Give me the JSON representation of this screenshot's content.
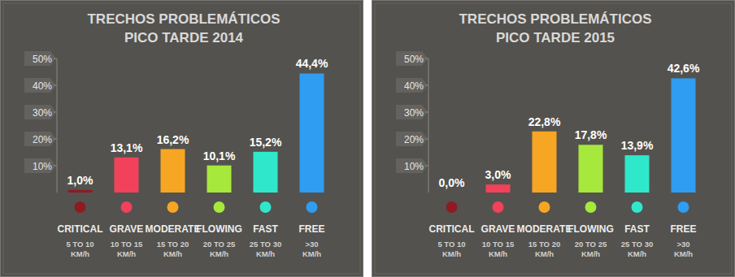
{
  "chart_data": [
    {
      "type": "bar",
      "title": "TRECHOS PROBLEMÁTICOS",
      "subtitle": "PICO TARDE 2014",
      "categories": [
        "CRITICAL",
        "GRAVE",
        "MODERATE",
        "FLOWING",
        "FAST",
        "FREE"
      ],
      "category_notes": [
        "5 TO 10 KM/h",
        "10 TO 15 KM/h",
        "15 TO 20 KM/h",
        "20 TO 25 KM/h",
        "25 TO 30 KM/h",
        ">30 KM/h"
      ],
      "values": [
        1.0,
        13.1,
        16.2,
        10.1,
        15.2,
        44.4
      ],
      "value_labels": [
        "1,0%",
        "13,1%",
        "16,2%",
        "10,1%",
        "15,2%",
        "44,4%"
      ],
      "colors": [
        "#8e1b22",
        "#f2415b",
        "#f6a623",
        "#a6e83c",
        "#2fe8cb",
        "#2f9df2"
      ],
      "ylim": [
        0,
        50
      ],
      "yticks": [
        {
          "value": 10,
          "label": "10%"
        },
        {
          "value": 20,
          "label": "20%"
        },
        {
          "value": 30,
          "label": "30%"
        },
        {
          "value": 40,
          "label": "40%"
        },
        {
          "value": 50,
          "label": "50%"
        }
      ],
      "data_labels": true,
      "grid": false
    },
    {
      "type": "bar",
      "title": "TRECHOS PROBLEMÁTICOS",
      "subtitle": "PICO TARDE 2015",
      "categories": [
        "CRITICAL",
        "GRAVE",
        "MODERATE",
        "FLOWING",
        "FAST",
        "FREE"
      ],
      "category_notes": [
        "5 TO 10 KM/h",
        "10 TO 15 KM/h",
        "15 TO 20 KM/h",
        "20 TO 25 KM/h",
        "25 TO 30 KM/h",
        ">30 KM/h"
      ],
      "values": [
        0.0,
        3.0,
        22.8,
        17.8,
        13.9,
        42.6
      ],
      "value_labels": [
        "0,0%",
        "3,0%",
        "22,8%",
        "17,8%",
        "13,9%",
        "42,6%"
      ],
      "colors": [
        "#8e1b22",
        "#f2415b",
        "#f6a623",
        "#a6e83c",
        "#2fe8cb",
        "#2f9df2"
      ],
      "ylim": [
        0,
        50
      ],
      "yticks": [
        {
          "value": 10,
          "label": "10%"
        },
        {
          "value": 20,
          "label": "20%"
        },
        {
          "value": 30,
          "label": "30%"
        },
        {
          "value": 40,
          "label": "40%"
        },
        {
          "value": 50,
          "label": "50%"
        }
      ],
      "data_labels": true,
      "grid": false
    }
  ]
}
